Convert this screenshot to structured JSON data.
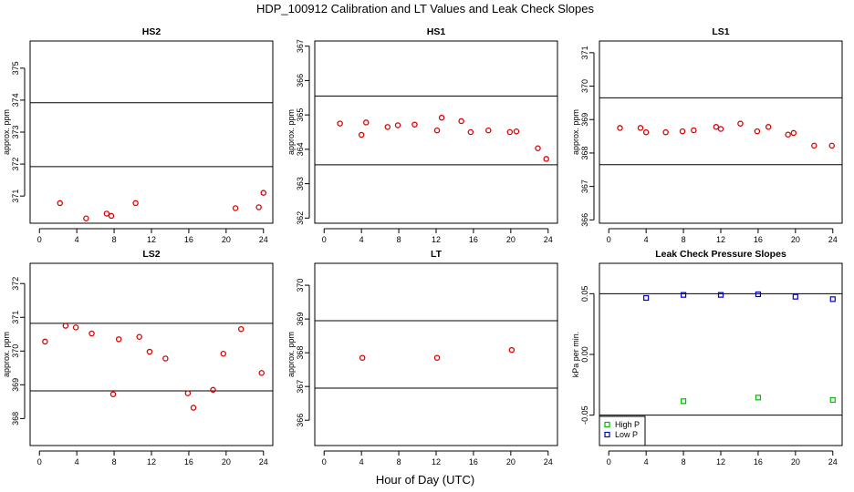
{
  "title": "HDP_100912  Calibration and LT Values and Leak Check Slopes",
  "xlabel": "Hour of Day (UTC)",
  "colors": {
    "cal": "#dd0000",
    "high_p": "#00bb00",
    "low_p": "#0000cc",
    "axis": "#000000"
  },
  "chart_data": [
    {
      "type": "scatter",
      "title": "HS2",
      "ylabel": "approx. ppm",
      "xlim": [
        -1,
        25
      ],
      "ylim": [
        370.15,
        375.85
      ],
      "xticks": [
        0,
        4,
        8,
        12,
        16,
        20,
        24
      ],
      "xtick_labels": [
        "0",
        "4",
        "8",
        "12",
        "16",
        "20",
        "24"
      ],
      "yticks": [
        371,
        372,
        373,
        374,
        375
      ],
      "ytick_labels": [
        "371",
        "372",
        "373",
        "374",
        "375"
      ],
      "hlines": [
        371.92,
        373.92
      ],
      "series": [
        {
          "marker": "circle",
          "color": "#dd0000",
          "x": [
            2.2,
            5.0,
            7.2,
            7.7,
            10.3,
            21.0,
            23.5,
            24.0
          ],
          "y": [
            370.78,
            370.3,
            370.45,
            370.38,
            370.78,
            370.62,
            370.65,
            371.1
          ]
        }
      ]
    },
    {
      "type": "scatter",
      "title": "HS1",
      "ylabel": "approx. ppm",
      "xlim": [
        -1,
        25
      ],
      "ylim": [
        361.85,
        367.15
      ],
      "xticks": [
        0,
        4,
        8,
        12,
        16,
        20,
        24
      ],
      "xtick_labels": [
        "0",
        "4",
        "8",
        "12",
        "16",
        "20",
        "24"
      ],
      "yticks": [
        362,
        363,
        364,
        365,
        366,
        367
      ],
      "ytick_labels": [
        "362",
        "363",
        "364",
        "365",
        "366",
        "367"
      ],
      "hlines": [
        363.55,
        365.55
      ],
      "series": [
        {
          "marker": "circle",
          "color": "#dd0000",
          "x": [
            1.7,
            4.0,
            4.5,
            6.8,
            7.9,
            9.7,
            12.1,
            12.6,
            14.7,
            15.7,
            17.6,
            19.9,
            20.6,
            22.9,
            23.8
          ],
          "y": [
            364.75,
            364.42,
            364.78,
            364.65,
            364.7,
            364.72,
            364.55,
            364.92,
            364.82,
            364.5,
            364.55,
            364.5,
            364.52,
            364.03,
            363.72
          ]
        }
      ]
    },
    {
      "type": "scatter",
      "title": "LS1",
      "ylabel": "approx. ppm",
      "xlim": [
        -1,
        25
      ],
      "ylim": [
        365.9,
        371.35
      ],
      "xticks": [
        0,
        4,
        8,
        12,
        16,
        20,
        24
      ],
      "xtick_labels": [
        "0",
        "4",
        "8",
        "12",
        "16",
        "20",
        "24"
      ],
      "yticks": [
        366,
        367,
        368,
        369,
        370,
        371
      ],
      "ytick_labels": [
        "366",
        "367",
        "368",
        "369",
        "370",
        "371"
      ],
      "hlines": [
        367.65,
        369.65
      ],
      "series": [
        {
          "marker": "circle",
          "color": "#dd0000",
          "x": [
            1.2,
            3.4,
            4.0,
            6.1,
            7.9,
            9.1,
            11.5,
            12.0,
            14.1,
            15.9,
            17.1,
            19.2,
            19.8,
            22.0,
            23.9
          ],
          "y": [
            368.75,
            368.75,
            368.62,
            368.62,
            368.65,
            368.68,
            368.78,
            368.72,
            368.88,
            368.65,
            368.78,
            368.55,
            368.6,
            368.22,
            368.22
          ]
        }
      ]
    },
    {
      "type": "scatter",
      "title": "LS2",
      "ylabel": "approx. ppm",
      "xlim": [
        -1,
        25
      ],
      "ylim": [
        367.2,
        372.6
      ],
      "xticks": [
        0,
        4,
        8,
        12,
        16,
        20,
        24
      ],
      "xtick_labels": [
        "0",
        "4",
        "8",
        "12",
        "16",
        "20",
        "24"
      ],
      "yticks": [
        368,
        369,
        370,
        371,
        372
      ],
      "ytick_labels": [
        "368",
        "369",
        "370",
        "371",
        "372"
      ],
      "hlines": [
        368.82,
        370.82
      ],
      "series": [
        {
          "marker": "circle",
          "color": "#dd0000",
          "x": [
            0.6,
            2.8,
            3.9,
            5.6,
            7.9,
            8.5,
            10.7,
            11.8,
            13.5,
            15.9,
            16.5,
            18.6,
            19.7,
            21.6,
            23.8
          ],
          "y": [
            370.28,
            370.75,
            370.7,
            370.52,
            368.72,
            370.35,
            370.42,
            369.98,
            369.78,
            368.75,
            368.32,
            368.85,
            369.92,
            370.65,
            369.35
          ]
        }
      ]
    },
    {
      "type": "scatter",
      "title": "LT",
      "ylabel": "approx. ppm",
      "xlim": [
        -1,
        25
      ],
      "ylim": [
        365.25,
        370.65
      ],
      "xticks": [
        0,
        4,
        8,
        12,
        16,
        20,
        24
      ],
      "xtick_labels": [
        "0",
        "4",
        "8",
        "12",
        "16",
        "20",
        "24"
      ],
      "yticks": [
        366,
        367,
        368,
        369,
        370
      ],
      "ytick_labels": [
        "366",
        "367",
        "368",
        "369",
        "370"
      ],
      "hlines": [
        366.95,
        368.95
      ],
      "series": [
        {
          "marker": "circle",
          "color": "#dd0000",
          "x": [
            4.1,
            12.1,
            20.1
          ],
          "y": [
            367.85,
            367.85,
            368.08
          ]
        }
      ]
    },
    {
      "type": "scatter",
      "title": "Leak Check Pressure Slopes",
      "ylabel": "kPa per min.",
      "xlim": [
        -1,
        25
      ],
      "ylim": [
        -0.075,
        0.075
      ],
      "xticks": [
        0,
        4,
        8,
        12,
        16,
        20,
        24
      ],
      "xtick_labels": [
        "0",
        "4",
        "8",
        "12",
        "16",
        "20",
        "24"
      ],
      "yticks": [
        -0.05,
        0.0,
        0.05
      ],
      "ytick_labels": [
        "-0.05",
        "0.00",
        "0.05"
      ],
      "hlines": [
        0.05,
        -0.05
      ],
      "legend": "bottom-left",
      "series": [
        {
          "name": "High P",
          "marker": "square",
          "color": "#00bb00",
          "x": [
            8,
            16,
            24
          ],
          "y": [
            -0.0385,
            -0.0355,
            -0.0375
          ]
        },
        {
          "name": "Low P",
          "marker": "square",
          "color": "#0000cc",
          "x": [
            4,
            8,
            12,
            16,
            20,
            24
          ],
          "y": [
            0.0465,
            0.049,
            0.049,
            0.0495,
            0.0475,
            0.0455
          ]
        }
      ]
    }
  ]
}
